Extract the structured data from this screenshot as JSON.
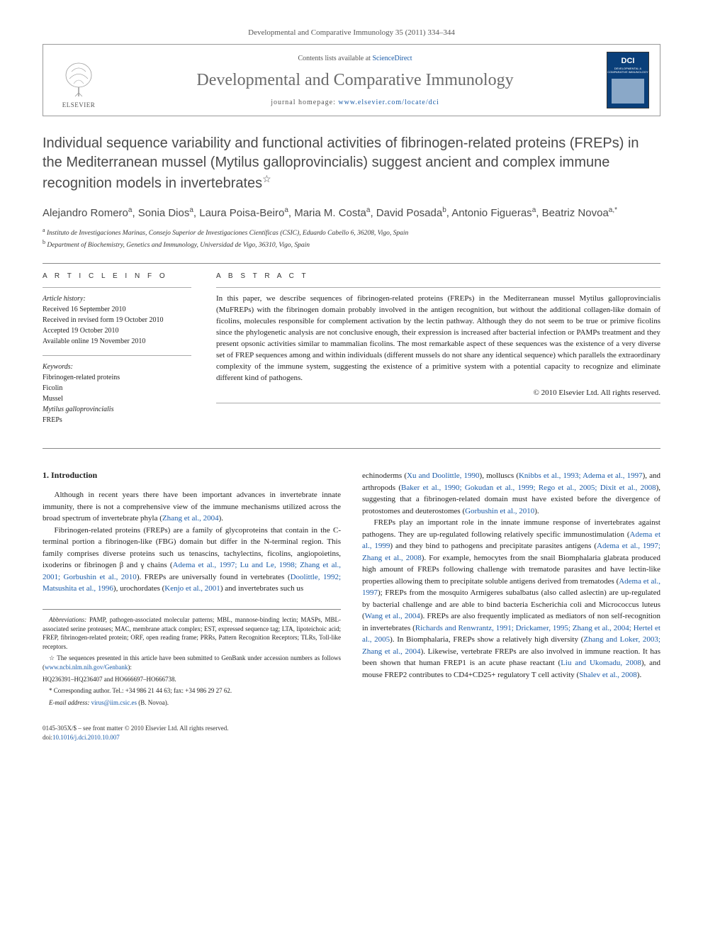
{
  "citation": "Developmental and Comparative Immunology 35 (2011) 334–344",
  "header": {
    "contents_prefix": "Contents lists available at ",
    "contents_link": "ScienceDirect",
    "journal_name": "Developmental and Comparative Immunology",
    "homepage_prefix": "journal homepage: ",
    "homepage_url": "www.elsevier.com/locate/dci",
    "publisher_logo": "ELSEVIER",
    "cover_abbr": "DCI",
    "cover_sub": "DEVELOPMENTAL & COMPARATIVE IMMUNOLOGY"
  },
  "title": "Individual sequence variability and functional activities of fibrinogen-related proteins (FREPs) in the Mediterranean mussel (Mytilus galloprovincialis) suggest ancient and complex immune recognition models in invertebrates",
  "title_star": "☆",
  "authors_html": "Alejandro Romero<sup>a</sup>, Sonia Dios<sup>a</sup>, Laura Poisa-Beiro<sup>a</sup>, Maria M. Costa<sup>a</sup>, David Posada<sup>b</sup>, Antonio Figueras<sup>a</sup>, Beatriz Novoa<sup>a,*</sup>",
  "affiliations": [
    {
      "sup": "a",
      "text": "Instituto de Investigaciones Marinas, Consejo Superior de Investigaciones Científicas (CSIC), Eduardo Cabello 6, 36208, Vigo, Spain"
    },
    {
      "sup": "b",
      "text": "Department of Biochemistry, Genetics and Immunology, Universidad de Vigo, 36310, Vigo, Spain"
    }
  ],
  "article_info": {
    "heading": "A R T I C L E   I N F O",
    "history_label": "Article history:",
    "history": [
      "Received 16 September 2010",
      "Received in revised form 19 October 2010",
      "Accepted 19 October 2010",
      "Available online 19 November 2010"
    ],
    "keywords_label": "Keywords:",
    "keywords": [
      "Fibrinogen-related proteins",
      "Ficolin",
      "Mussel",
      "Mytilus galloprovincialis",
      "FREPs"
    ]
  },
  "abstract": {
    "heading": "A B S T R A C T",
    "text": "In this paper, we describe sequences of fibrinogen-related proteins (FREPs) in the Mediterranean mussel Mytilus galloprovincialis (MuFREPs) with the fibrinogen domain probably involved in the antigen recognition, but without the additional collagen-like domain of ficolins, molecules responsible for complement activation by the lectin pathway. Although they do not seem to be true or primive ficolins since the phylogenetic analysis are not conclusive enough, their expression is increased after bacterial infection or PAMPs treatment and they present opsonic activities similar to mammalian ficolins. The most remarkable aspect of these sequences was the existence of a very diverse set of FREP sequences among and within individuals (different mussels do not share any identical sequence) which parallels the extraordinary complexity of the immune system, suggesting the existence of a primitive system with a potential capacity to recognize and eliminate different kind of pathogens.",
    "copyright": "© 2010 Elsevier Ltd. All rights reserved."
  },
  "section1": {
    "heading": "1. Introduction",
    "p1": "Although in recent years there have been important advances in invertebrate innate immunity, there is not a comprehensive view of the immune mechanisms utilized across the broad spectrum of invertebrate phyla (",
    "p1_ref": "Zhang et al., 2004",
    "p1_end": ").",
    "p2_pre": "Fibrinogen-related proteins (FREPs) are a family of glycoproteins that contain in the C-terminal portion a fibrinogen-like (FBG) domain but differ in the N-terminal region. This family comprises diverse proteins such us tenascins, tachylectins, ficolins, angiopoietins, ixoderins or fibrinogen β and γ chains (",
    "p2_ref1": "Adema et al., 1997; Lu and Le, 1998; Zhang et al., 2001; Gorbushin et al., 2010",
    "p2_mid": "). FREPs are universally found in vertebrates (",
    "p2_ref2": "Doolittle, 1992; Matsushita et al., 1996",
    "p2_mid2": "), urochordates (",
    "p2_ref3": "Kenjo et al., 2001",
    "p2_end": ") and invertebrates such us"
  },
  "col2": {
    "p1_pre": "echinoderms (",
    "p1_ref1": "Xu and Doolittle, 1990",
    "p1_mid1": "), molluscs (",
    "p1_ref2": "Knibbs et al., 1993; Adema et al., 1997",
    "p1_mid2": "), and arthropods (",
    "p1_ref3": "Baker et al., 1990; Gokudan et al., 1999; Rego et al., 2005; Dixit et al., 2008",
    "p1_mid3": "), suggesting that a fibrinogen-related domain must have existed before the divergence of protostomes and deuterostomes (",
    "p1_ref4": "Gorbushin et al., 2010",
    "p1_end": ").",
    "p2_pre": "FREPs play an important role in the innate immune response of invertebrates against pathogens. They are up-regulated following relatively specific immunostimulation (",
    "p2_ref1": "Adema et al., 1999",
    "p2_mid1": ") and they bind to pathogens and precipitate parasites antigens (",
    "p2_ref2": "Adema et al., 1997; Zhang et al., 2008",
    "p2_mid2": "). For example, hemocytes from the snail Biomphalaria glabrata produced high amount of FREPs following challenge with trematode parasites and have lectin-like properties allowing them to precipitate soluble antigens derived from trematodes (",
    "p2_ref3": "Adema et al., 1997",
    "p2_mid3": "); FREPs from the mosquito Armigeres subalbatus (also called aslectin) are up-regulated by bacterial challenge and are able to bind bacteria Escherichia coli and Micrococcus luteus (",
    "p2_ref4": "Wang et al., 2004",
    "p2_mid4": "). FREPs are also frequently implicated as mediators of non self-recognition in invertebrates (",
    "p2_ref5": "Richards and Renwrantz, 1991; Drickamer, 1995; Zhang et al., 2004; Hertel et al., 2005",
    "p2_mid5": "). In Biomphalaria, FREPs show a relatively high diversity (",
    "p2_ref6": "Zhang and Loker, 2003; Zhang et al., 2004",
    "p2_mid6": "). Likewise, vertebrate FREPs are also involved in immune reaction. It has been shown that human FREP1 is an acute phase reactant (",
    "p2_ref7": "Liu and Ukomadu, 2008",
    "p2_mid7": "), and mouse FREP2 contributes to CD4+CD25+ regulatory T cell activity (",
    "p2_ref8": "Shalev et al., 2008",
    "p2_end": ")."
  },
  "footnotes": {
    "abbrev_label": "Abbreviations:",
    "abbrev": " PAMP, pathogen-associated molecular patterns; MBL, mannose-binding lectin; MASPs, MBL-associated serine proteases; MAC, membrane attack complex; EST, expressed sequence tag; LTA, lipoteichoic acid; FREP, fibrinogen-related protein; ORF, open reading frame; PRRs, Pattern Recognition Receptors; TLRs, Toll-like receptors.",
    "star_note_pre": "☆ The sequences presented in this article have been submitted to GenBank under accession numbers as follows (",
    "star_link": "www.ncbi.nlm.nih.gov/Genbank",
    "star_note_post": "):",
    "accessions": "HQ236391–HQ236407 and HO666697–HO666738.",
    "corr_label": "* Corresponding author. ",
    "corr": "Tel.: +34 986 21 44 63; fax: +34 986 29 27 62.",
    "email_label": "E-mail address: ",
    "email": "virus@iim.csic.es",
    "email_post": " (B. Novoa)."
  },
  "footer": {
    "front_matter": "0145-305X/$ – see front matter © 2010 Elsevier Ltd. All rights reserved.",
    "doi_label": "doi:",
    "doi": "10.1016/j.dci.2010.10.007"
  },
  "colors": {
    "link": "#1a5ba8",
    "heading_gray": "#4a4a4a",
    "cover_bg": "#0a3f7a"
  }
}
